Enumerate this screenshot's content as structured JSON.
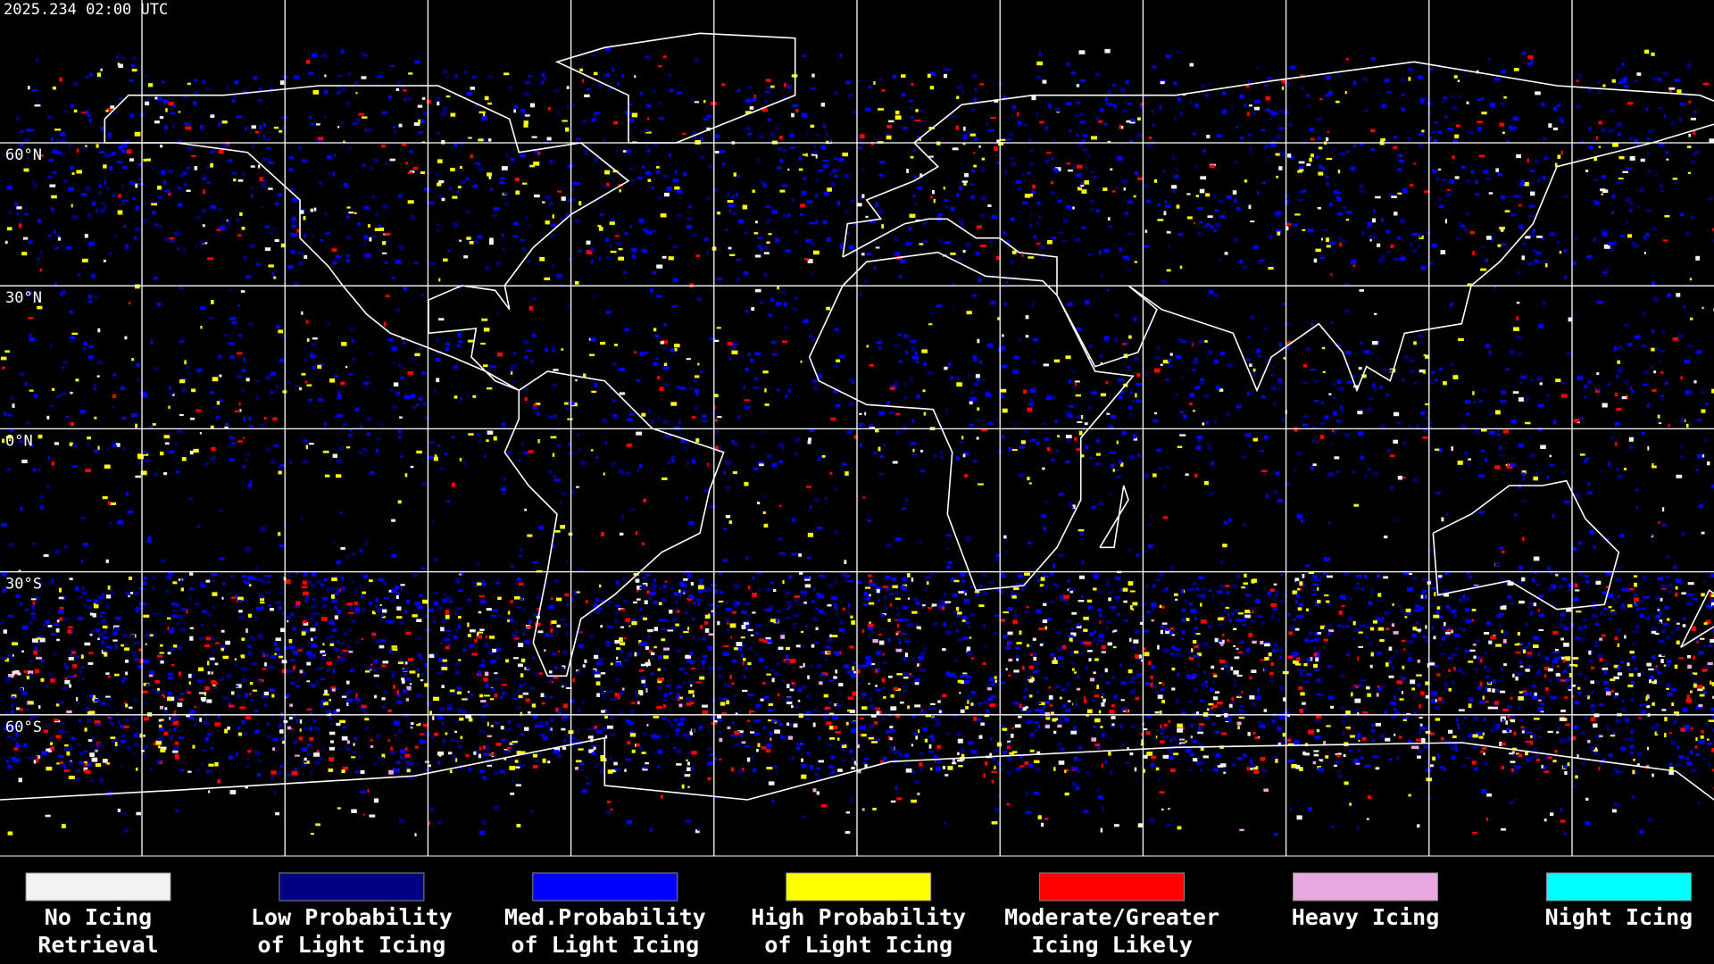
{
  "header": {
    "timestamp": "2025.234 02:00 UTC"
  },
  "map": {
    "latitude_labels": [
      "60°N",
      "30°N",
      "0°N",
      "30°S",
      "60°S"
    ]
  },
  "legend": {
    "items": [
      {
        "label": [
          "No Icing",
          "Retrieval"
        ],
        "color": "#f2f2f2"
      },
      {
        "label": [
          "Low Probability",
          "of Light Icing"
        ],
        "color": "#000080"
      },
      {
        "label": [
          "Med.Probability",
          "of Light Icing"
        ],
        "color": "#0000ff"
      },
      {
        "label": [
          "High Probability",
          "of Light Icing"
        ],
        "color": "#ffff00"
      },
      {
        "label": [
          "Moderate/Greater",
          "Icing Likely"
        ],
        "color": "#ff0000"
      },
      {
        "label": [
          "Heavy Icing"
        ],
        "color": "#e8a8e0"
      },
      {
        "label": [
          "Night Icing"
        ],
        "color": "#00ffff"
      }
    ]
  }
}
